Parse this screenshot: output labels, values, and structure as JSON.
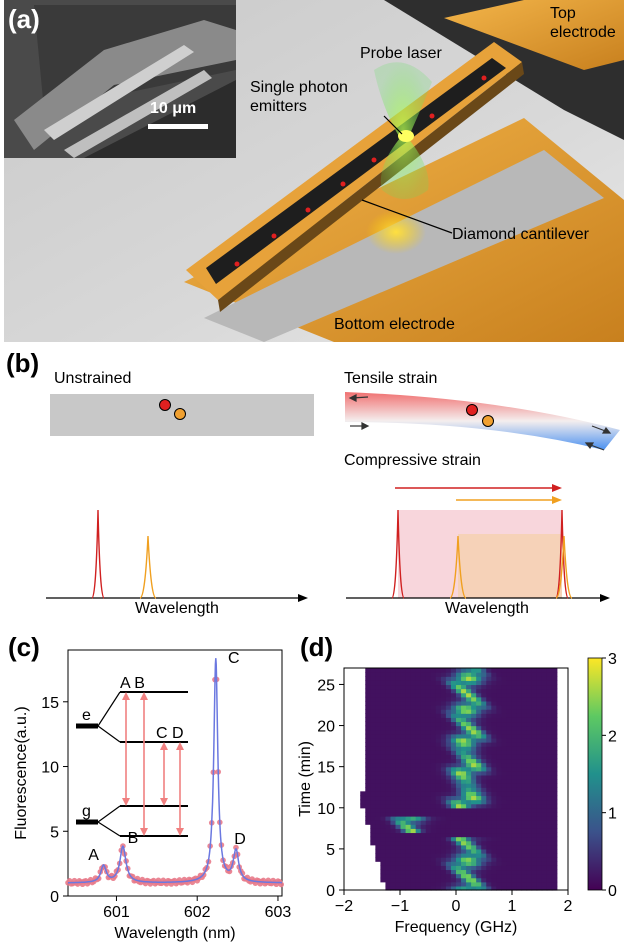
{
  "panel_a": {
    "label": "(a)",
    "scale_bar": "10 μm",
    "annotations": {
      "top_electrode": [
        "Top",
        "electrode"
      ],
      "probe_laser": "Probe laser",
      "single_photon": [
        "Single photon",
        "emitters"
      ],
      "cantilever": "Diamond cantilever",
      "bottom_electrode": "Bottom electrode"
    }
  },
  "panel_b": {
    "label": "(b)",
    "unstrained": "Unstrained",
    "tensile": "Tensile strain",
    "compressive": "Compressive strain",
    "axis_label": "Wavelength"
  },
  "panel_c": {
    "label": "(c)",
    "level_labels": {
      "e": "e",
      "g": "g",
      "AB": "A B",
      "CD": "C D"
    },
    "peak_labels": [
      "A",
      "B",
      "C",
      "D"
    ]
  },
  "panel_d": {
    "label": "(d)"
  },
  "colors": {
    "electrode": "#e89a2a",
    "emitter_red": "#e02020",
    "emitter_orange": "#f0a030",
    "arrow_red": "#d02020",
    "arrow_orange": "#f0a020",
    "fit_line": "#6b78e0",
    "data_points": "#e87a8a",
    "transition_arrow": "#f08080"
  },
  "chart_data": [
    {
      "type": "line",
      "name": "fluorescence-spectrum",
      "xlabel": "Wavelength (nm)",
      "ylabel": "Fluorescence(a.u.)",
      "xlim": [
        600.4,
        603.05
      ],
      "ylim": [
        0,
        19
      ],
      "xticks": [
        601,
        602,
        603
      ],
      "yticks": [
        0,
        5,
        10,
        15
      ],
      "peaks": [
        {
          "label": "A",
          "x": 600.84,
          "height": 1.3
        },
        {
          "label": "B",
          "x": 601.08,
          "height": 2.8
        },
        {
          "label": "C",
          "x": 602.23,
          "height": 17.3
        },
        {
          "label": "D",
          "x": 602.48,
          "height": 2.4
        }
      ],
      "baseline": 1.0
    },
    {
      "type": "heatmap",
      "name": "time-frequency-map",
      "xlabel": "Frequency (GHz)",
      "ylabel": "Time (min)",
      "xlim": [
        -2,
        2
      ],
      "ylim": [
        0,
        27
      ],
      "xticks": [
        -2,
        -1,
        0,
        1,
        2
      ],
      "yticks": [
        0,
        5,
        10,
        15,
        20,
        25
      ],
      "colorbar": {
        "min": 0,
        "max": 3,
        "ticks": [
          0,
          1,
          2,
          3
        ],
        "colormap": "viridis"
      },
      "features": [
        {
          "time_range": [
            0,
            6.5
          ],
          "freq_center": 0.2,
          "peak_intensity": 2.4
        },
        {
          "time_range": [
            7,
            9
          ],
          "freq_center": -0.8,
          "peak_intensity": 2.5
        },
        {
          "time_range": [
            10,
            27
          ],
          "freq_center": 0.2,
          "peak_intensity": 2.5
        }
      ]
    }
  ]
}
